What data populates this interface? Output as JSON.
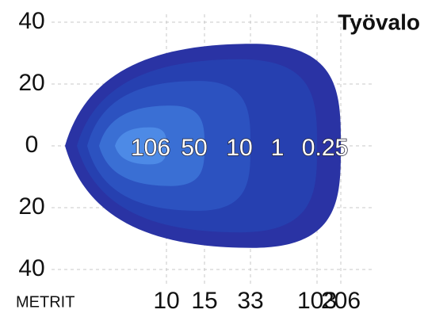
{
  "chart_data": {
    "type": "isolux",
    "title": "Työvalo",
    "x_label": "METRIT",
    "levels": [
      {
        "lux": 106,
        "distance": 10,
        "half_width": 6,
        "color": "#4d8ae6"
      },
      {
        "lux": 50,
        "distance": 15,
        "half_width": 13,
        "color": "#3a6fd4"
      },
      {
        "lux": 10,
        "distance": 33,
        "half_width": 21,
        "color": "#2c52c0"
      },
      {
        "lux": 1,
        "distance": 103,
        "half_width": 28,
        "color": "#2640b0"
      },
      {
        "lux": 0.25,
        "distance": 206,
        "half_width": 33,
        "color": "#2a33a4"
      }
    ],
    "ylim": [
      -40,
      40
    ],
    "yticks": [
      {
        "value": -40,
        "label": "40"
      },
      {
        "value": -20,
        "label": "20"
      },
      0,
      20,
      40
    ],
    "grid": true
  }
}
